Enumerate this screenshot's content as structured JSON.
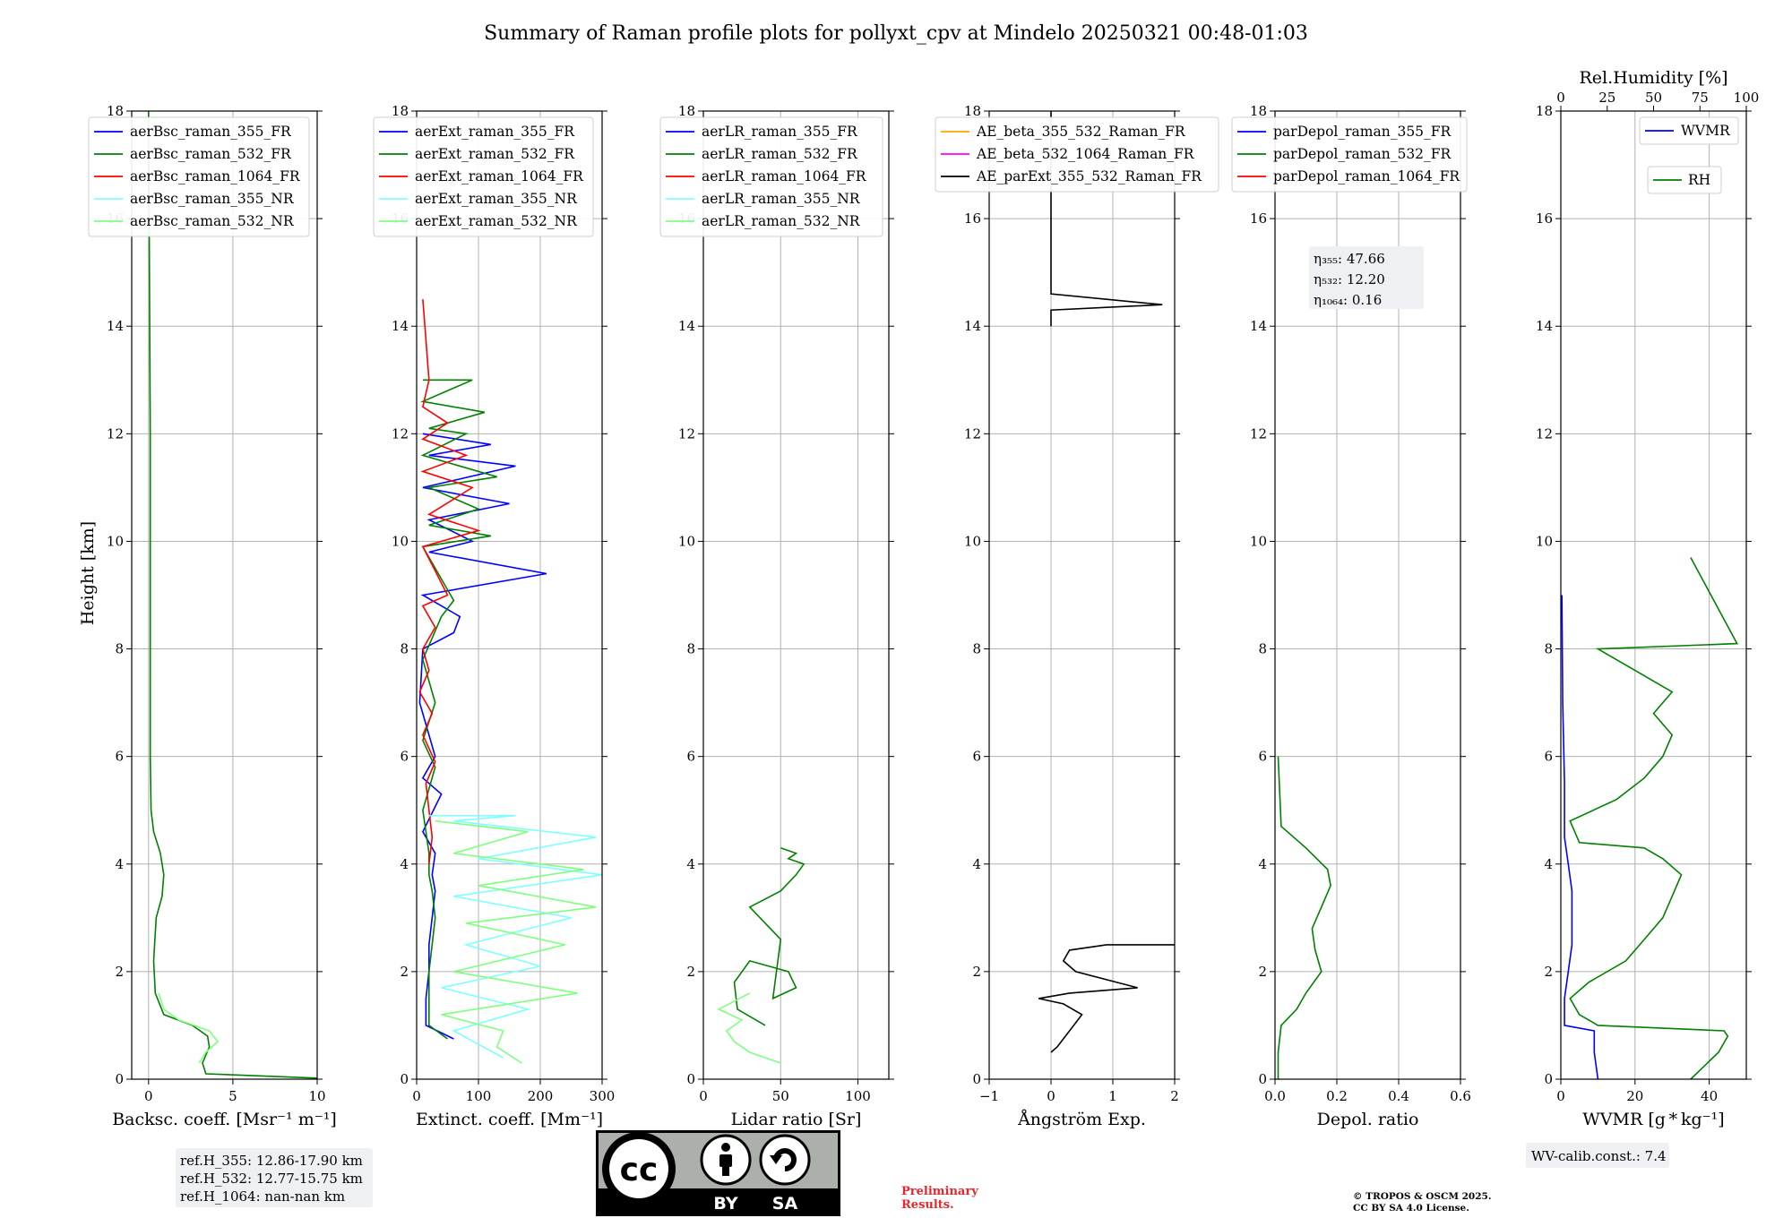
{
  "title": "Summary of Raman profile plots for pollyxt_cpv at Mindelo 20250321 00:48-01:03",
  "y_label": "Height [km]",
  "y_ticks": [
    "0",
    "2",
    "4",
    "6",
    "8",
    "10",
    "12",
    "14",
    "16",
    "18"
  ],
  "panels": [
    {
      "id": "bsc",
      "xlabel": "Backsc. coeff. [Msr⁻¹ m⁻¹]",
      "xlim": [
        -1,
        10
      ],
      "xticks": [
        0,
        5,
        10
      ],
      "xticklabels": [
        "0",
        "5",
        "10"
      ],
      "legend": [
        {
          "name": "aerBsc_raman_355_FR",
          "color": "#0000ff"
        },
        {
          "name": "aerBsc_raman_532_FR",
          "color": "#008000"
        },
        {
          "name": "aerBsc_raman_1064_FR",
          "color": "#ff0000"
        },
        {
          "name": "aerBsc_raman_355_NR",
          "color": "#7fffff"
        },
        {
          "name": "aerBsc_raman_532_NR",
          "color": "#7fff7f"
        }
      ]
    },
    {
      "id": "ext",
      "xlabel": "Extinct. coeff. [Mm⁻¹]",
      "xlim": [
        0,
        300
      ],
      "xticks": [
        0,
        100,
        200,
        300
      ],
      "xticklabels": [
        "0",
        "100",
        "200",
        "300"
      ],
      "legend": [
        {
          "name": "aerExt_raman_355_FR",
          "color": "#0000ff"
        },
        {
          "name": "aerExt_raman_532_FR",
          "color": "#008000"
        },
        {
          "name": "aerExt_raman_1064_FR",
          "color": "#ff0000"
        },
        {
          "name": "aerExt_raman_355_NR",
          "color": "#7fffff"
        },
        {
          "name": "aerExt_raman_532_NR",
          "color": "#7fff7f"
        }
      ]
    },
    {
      "id": "lr",
      "xlabel": "Lidar ratio [Sr]",
      "xlim": [
        0,
        120
      ],
      "xticks": [
        0,
        50,
        100
      ],
      "xticklabels": [
        "0",
        "50",
        "100"
      ],
      "legend": [
        {
          "name": "aerLR_raman_355_FR",
          "color": "#0000ff"
        },
        {
          "name": "aerLR_raman_532_FR",
          "color": "#008000"
        },
        {
          "name": "aerLR_raman_1064_FR",
          "color": "#ff0000"
        },
        {
          "name": "aerLR_raman_355_NR",
          "color": "#7fffff"
        },
        {
          "name": "aerLR_raman_532_NR",
          "color": "#7fff7f"
        }
      ]
    },
    {
      "id": "ae",
      "xlabel": "Ångström Exp.",
      "xlim": [
        -1,
        2
      ],
      "xticks": [
        -1,
        0,
        1,
        2
      ],
      "xticklabels": [
        "−1",
        "0",
        "1",
        "2"
      ],
      "legend": [
        {
          "name": "AE_beta_355_532_Raman_FR",
          "color": "#ffa500"
        },
        {
          "name": "AE_beta_532_1064_Raman_FR",
          "color": "#ff00ff"
        },
        {
          "name": "AE_parExt_355_532_Raman_FR",
          "color": "#000000"
        }
      ]
    },
    {
      "id": "dep",
      "xlabel": "Depol. ratio",
      "xlim": [
        0,
        0.6
      ],
      "xticks": [
        0,
        0.2,
        0.4,
        0.6
      ],
      "xticklabels": [
        "0.0",
        "0.2",
        "0.4",
        "0.6"
      ],
      "legend": [
        {
          "name": "parDepol_raman_355_FR",
          "color": "#0000ff"
        },
        {
          "name": "parDepol_raman_532_FR",
          "color": "#008000"
        },
        {
          "name": "parDepol_raman_1064_FR",
          "color": "#ff0000"
        }
      ],
      "eta": [
        "η₃₅₅: 47.66",
        "η₅₃₂: 12.20",
        "η₁₀₆₄: 0.16"
      ]
    },
    {
      "id": "wv",
      "xlabel": "WVMR [g * kg⁻¹]",
      "xlim": [
        0,
        50
      ],
      "xticks": [
        0,
        20,
        40
      ],
      "xticklabels": [
        "0",
        "20",
        "40"
      ],
      "top_label": "Rel.Humidity [%]",
      "top_xlim": [
        0,
        100
      ],
      "top_ticks": [
        0,
        25,
        50,
        75,
        100
      ],
      "top_ticklabels": [
        "0",
        "25",
        "50",
        "75",
        "100"
      ],
      "legend_wvmr": {
        "name": "WVMR",
        "color": "#0000ff"
      },
      "legend_rh": {
        "name": "RH",
        "color": "#008000"
      }
    }
  ],
  "ref_heights": [
    "ref.H_355: 12.86-17.90 km",
    "ref.H_532: 12.77-15.75 km",
    "ref.H_1064: nan-nan km"
  ],
  "wv_calib": "WV-calib.const.: 7.4",
  "cc_badge": {
    "by": "BY",
    "sa": "SA",
    "cc": "cc"
  },
  "preliminary": [
    "Preliminary",
    "Results."
  ],
  "copyright": [
    "© TROPOS & OSCM 2025.",
    "CC BY SA 4.0 License."
  ],
  "chart_data": [
    {
      "type": "line",
      "title": "",
      "xlabel": "Backsc. coeff. [Msr⁻¹ m⁻¹]",
      "ylabel": "Height [km]",
      "xlim": [
        -1,
        10
      ],
      "ylim": [
        0,
        18
      ],
      "series": [
        {
          "name": "aerBsc_raman_532_FR",
          "color": "#008000",
          "x": [
            10,
            3.4,
            3.2,
            3.6,
            3.5,
            2.6,
            0.9,
            0.4,
            0.3,
            0.45,
            0.8,
            0.9,
            0.7,
            0.3,
            0.15,
            0.1,
            0.1,
            0.1,
            0.05,
            0.0
          ],
          "y": [
            0.02,
            0.1,
            0.3,
            0.6,
            0.8,
            1.0,
            1.2,
            1.6,
            2.2,
            3.0,
            3.4,
            3.8,
            4.2,
            4.6,
            5.0,
            6.0,
            8.0,
            12.0,
            15.0,
            18.0
          ]
        },
        {
          "name": "aerBsc_raman_532_NR",
          "color": "#7fff7f",
          "x": [
            3.0,
            3.4,
            4.1,
            3.6,
            1.8,
            0.9,
            0.6
          ],
          "y": [
            0.3,
            0.5,
            0.7,
            0.9,
            1.1,
            1.3,
            1.6
          ]
        }
      ]
    },
    {
      "type": "line",
      "title": "",
      "xlabel": "Extinct. coeff. [Mm⁻¹]",
      "ylabel": "Height [km]",
      "xlim": [
        0,
        300
      ],
      "ylim": [
        0,
        18
      ],
      "series": [
        {
          "name": "aerExt_raman_355_FR",
          "color": "#0000ff",
          "x": [
            60,
            15,
            15,
            20,
            20,
            25,
            30,
            25,
            30,
            10,
            40,
            10,
            30,
            5,
            10,
            60,
            70,
            10,
            210,
            20,
            90,
            20,
            150,
            10,
            160,
            20,
            120,
            10
          ],
          "y": [
            0.75,
            1.0,
            1.5,
            2.0,
            2.5,
            3.0,
            3.5,
            3.8,
            4.2,
            4.6,
            5.3,
            5.6,
            6.0,
            7.0,
            8.0,
            8.3,
            8.6,
            9.0,
            9.4,
            9.8,
            10.0,
            10.4,
            10.7,
            11.0,
            11.4,
            11.6,
            11.8,
            12.0
          ]
        },
        {
          "name": "aerExt_raman_532_FR",
          "color": "#008000",
          "x": [
            50,
            20,
            20,
            20,
            25,
            30,
            25,
            20,
            20,
            10,
            30,
            10,
            30,
            10,
            40,
            60,
            10,
            120,
            20,
            100,
            20,
            130,
            10,
            80,
            20,
            110,
            10,
            90,
            10
          ],
          "y": [
            0.75,
            1.0,
            1.5,
            2.0,
            2.5,
            3.0,
            3.5,
            3.8,
            4.2,
            5.0,
            5.8,
            6.3,
            7.0,
            7.8,
            8.6,
            8.9,
            9.9,
            10.1,
            10.3,
            10.6,
            11.0,
            11.2,
            11.6,
            12.0,
            12.1,
            12.4,
            12.6,
            13.0,
            13.0
          ]
        },
        {
          "name": "aerExt_raman_1064_FR",
          "color": "#ff0000",
          "x": [
            20,
            25,
            20,
            15,
            30,
            10,
            25,
            5,
            20,
            10,
            30,
            10,
            50,
            10,
            100,
            20,
            90,
            10,
            80,
            10,
            50,
            10,
            20,
            10
          ],
          "y": [
            4.0,
            4.5,
            5.0,
            5.5,
            5.9,
            6.4,
            6.8,
            7.2,
            7.6,
            8.0,
            8.4,
            8.8,
            9.0,
            9.9,
            10.2,
            10.5,
            11.0,
            11.3,
            11.6,
            11.9,
            12.2,
            12.5,
            13.0,
            14.5
          ]
        },
        {
          "name": "aerExt_raman_355_NR",
          "color": "#7fffff",
          "x": [
            140,
            60,
            180,
            40,
            200,
            80,
            250,
            60,
            300,
            100,
            290,
            60,
            160,
            20
          ],
          "y": [
            0.4,
            0.9,
            1.3,
            1.7,
            2.1,
            2.5,
            3.0,
            3.4,
            3.8,
            4.1,
            4.5,
            4.8,
            4.9,
            4.9
          ]
        },
        {
          "name": "aerExt_raman_532_NR",
          "color": "#7fff7f",
          "x": [
            170,
            130,
            140,
            40,
            260,
            60,
            240,
            80,
            290,
            100,
            270,
            60,
            180,
            30
          ],
          "y": [
            0.3,
            0.6,
            0.9,
            1.2,
            1.6,
            2.0,
            2.5,
            2.9,
            3.2,
            3.6,
            3.9,
            4.2,
            4.6,
            4.8
          ]
        }
      ]
    },
    {
      "type": "line",
      "title": "",
      "xlabel": "Lidar ratio [Sr]",
      "ylabel": "Height [km]",
      "xlim": [
        0,
        120
      ],
      "ylim": [
        0,
        18
      ],
      "series": [
        {
          "name": "aerLR_raman_532_FR",
          "color": "#008000",
          "x": [
            40,
            22,
            20,
            30,
            55,
            60,
            45,
            50,
            40,
            30,
            50,
            60,
            65,
            55,
            60,
            50
          ],
          "y": [
            1.0,
            1.3,
            1.8,
            2.2,
            2.0,
            1.7,
            1.5,
            2.6,
            2.9,
            3.2,
            3.5,
            3.8,
            4.0,
            4.1,
            4.2,
            4.3
          ]
        },
        {
          "name": "aerLR_raman_532_NR",
          "color": "#7fff7f",
          "x": [
            50,
            30,
            20,
            15,
            25,
            10,
            30
          ],
          "y": [
            0.3,
            0.5,
            0.7,
            0.9,
            1.1,
            1.3,
            1.6
          ]
        }
      ]
    },
    {
      "type": "line",
      "title": "",
      "xlabel": "Ångström Exp.",
      "ylabel": "Height [km]",
      "xlim": [
        -1,
        2
      ],
      "ylim": [
        0,
        18
      ],
      "series": [
        {
          "name": "AE_parExt_355_532_Raman_FR",
          "color": "#000000",
          "x": [
            0.0,
            0.1,
            0.3,
            0.5,
            0.2,
            -0.2,
            0.3,
            1.4,
            0.4,
            0.2,
            0.3,
            0.9,
            2.0
          ],
          "y": [
            0.5,
            0.6,
            0.9,
            1.2,
            1.4,
            1.5,
            1.6,
            1.7,
            2.0,
            2.2,
            2.4,
            2.5,
            2.5
          ]
        },
        {
          "name": "AE_parExt_355_532_Raman_FR (upper)",
          "color": "#000000",
          "x": [
            0.0,
            0.0,
            1.8,
            0.0,
            0.0
          ],
          "y": [
            14.0,
            14.3,
            14.4,
            14.6,
            18.0
          ]
        }
      ]
    },
    {
      "type": "line",
      "title": "",
      "xlabel": "Depol. ratio",
      "ylabel": "Height [km]",
      "xlim": [
        0,
        0.6
      ],
      "ylim": [
        0,
        18
      ],
      "series": [
        {
          "name": "parDepol_raman_532_FR",
          "color": "#008000",
          "x": [
            0.01,
            0.01,
            0.02,
            0.07,
            0.1,
            0.15,
            0.13,
            0.12,
            0.15,
            0.18,
            0.17,
            0.1,
            0.04,
            0.02,
            0.01
          ],
          "y": [
            0.0,
            0.5,
            1.0,
            1.3,
            1.6,
            2.0,
            2.4,
            2.8,
            3.2,
            3.6,
            3.9,
            4.3,
            4.6,
            4.7,
            6.0
          ]
        }
      ]
    },
    {
      "type": "line",
      "title": "",
      "xlabel": "WVMR [g * kg⁻¹]",
      "ylabel": "Height [km]",
      "xlim": [
        0,
        50
      ],
      "ylim": [
        0,
        18
      ],
      "top_axis": {
        "label": "Rel.Humidity [%]",
        "lim": [
          0,
          100
        ]
      },
      "series": [
        {
          "name": "WVMR",
          "color": "#0000ff",
          "axis": "bottom",
          "x": [
            10,
            9,
            9,
            1,
            1,
            2,
            3,
            3,
            2,
            1,
            1,
            0.5,
            0.3
          ],
          "y": [
            0.0,
            0.5,
            0.9,
            1.0,
            1.5,
            2.0,
            2.5,
            3.5,
            4.0,
            4.5,
            5.5,
            7.0,
            9.0
          ]
        },
        {
          "name": "RH",
          "color": "#008000",
          "axis": "top",
          "x": [
            70,
            85,
            90,
            88,
            20,
            10,
            5,
            15,
            35,
            45,
            55,
            60,
            65,
            55,
            45,
            10,
            5,
            30,
            45,
            55,
            60,
            50,
            55,
            60,
            45,
            30,
            20,
            95,
            70
          ],
          "y": [
            0.0,
            0.5,
            0.8,
            0.9,
            1.0,
            1.2,
            1.5,
            1.8,
            2.2,
            2.6,
            3.0,
            3.4,
            3.8,
            4.1,
            4.3,
            4.4,
            4.8,
            5.2,
            5.6,
            6.0,
            6.4,
            6.8,
            7.0,
            7.2,
            7.5,
            7.8,
            8.0,
            8.1,
            9.7
          ]
        }
      ]
    }
  ]
}
